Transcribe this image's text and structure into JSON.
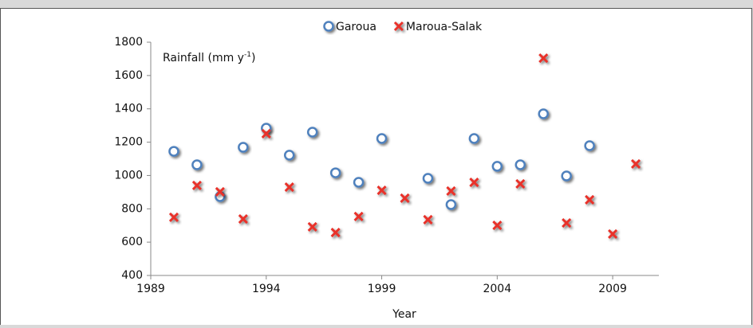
{
  "chart_data": {
    "type": "scatter",
    "x_label": "Year",
    "y_label_parts": [
      "Rainfall (mm y",
      "-1",
      ")"
    ],
    "legend": "top",
    "xlim": [
      1989,
      2011
    ],
    "xticks": [
      1989,
      1994,
      1999,
      2004,
      2009
    ],
    "ylim": [
      400,
      1800
    ],
    "yticks": [
      400,
      600,
      800,
      1000,
      1200,
      1400,
      1600,
      1800
    ],
    "series": [
      {
        "name": "Garoua",
        "color": "#4f81bd",
        "marker": "circle",
        "x": [
          1990,
          1991,
          1992,
          1993,
          1994,
          1995,
          1996,
          1997,
          1998,
          1999,
          2001,
          2002,
          2003,
          2004,
          2005,
          2006,
          2007,
          2008
        ],
        "values": [
          1145,
          1064,
          873,
          1169,
          1284,
          1122,
          1260,
          1016,
          959,
          1222,
          983,
          825,
          1222,
          1055,
          1064,
          1370,
          997,
          1179
        ]
      },
      {
        "name": "Maroua-Salak",
        "color": "#e8302a",
        "marker": "cross",
        "x": [
          1990,
          1991,
          1992,
          1993,
          1994,
          1995,
          1996,
          1997,
          1998,
          1999,
          2000,
          2001,
          2002,
          2003,
          2004,
          2005,
          2006,
          2007,
          2008,
          2009,
          2010
        ],
        "values": [
          749,
          940,
          902,
          739,
          1251,
          930,
          692,
          658,
          754,
          911,
          864,
          735,
          907,
          959,
          701,
          950,
          1704,
          715,
          854,
          649,
          1069
        ]
      }
    ]
  }
}
